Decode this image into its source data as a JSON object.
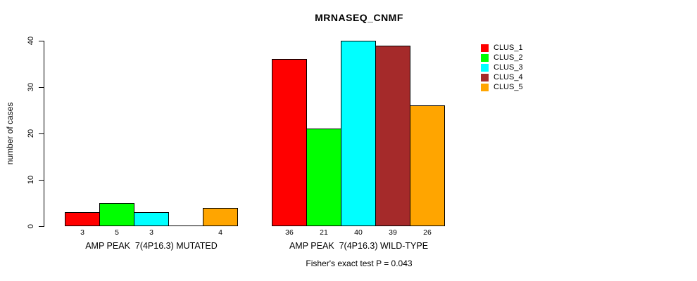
{
  "title": "MRNASEQ_CNMF",
  "y_axis": {
    "label": "number of cases",
    "ticks": [
      "0",
      "10",
      "20",
      "30",
      "40"
    ]
  },
  "footer": "Fisher's exact test P = 0.043",
  "legend": {
    "items": [
      {
        "label": "CLUS_1",
        "color": "#FF0000"
      },
      {
        "label": "CLUS_2",
        "color": "#00FF00"
      },
      {
        "label": "CLUS_3",
        "color": "#00FFFF"
      },
      {
        "label": "CLUS_4",
        "color": "#A52A2A"
      },
      {
        "label": "CLUS_5",
        "color": "#FFA500"
      }
    ]
  },
  "chart_data": {
    "type": "bar",
    "title": "MRNASEQ_CNMF",
    "xlabel": "",
    "ylabel": "number of cases",
    "ylim": [
      0,
      40
    ],
    "yticks": [
      0,
      10,
      20,
      30,
      40
    ],
    "grid": false,
    "legend_position": "right",
    "categories": [
      "AMP PEAK  7(4P16.3) MUTATED",
      "AMP PEAK  7(4P16.3) WILD-TYPE"
    ],
    "series": [
      {
        "name": "CLUS_1",
        "color": "#FF0000",
        "values": [
          3,
          36
        ]
      },
      {
        "name": "CLUS_2",
        "color": "#00FF00",
        "values": [
          5,
          21
        ]
      },
      {
        "name": "CLUS_3",
        "color": "#00FFFF",
        "values": [
          3,
          40
        ]
      },
      {
        "name": "CLUS_4",
        "color": "#A52A2A",
        "values": [
          0,
          39
        ]
      },
      {
        "name": "CLUS_5",
        "color": "#FFA500",
        "values": [
          4,
          26
        ]
      }
    ],
    "bar_labels": [
      [
        "3",
        "5",
        "3",
        "",
        "4"
      ],
      [
        "36",
        "21",
        "40",
        "39",
        "26"
      ]
    ],
    "annotation": "Fisher's exact test P = 0.043"
  }
}
